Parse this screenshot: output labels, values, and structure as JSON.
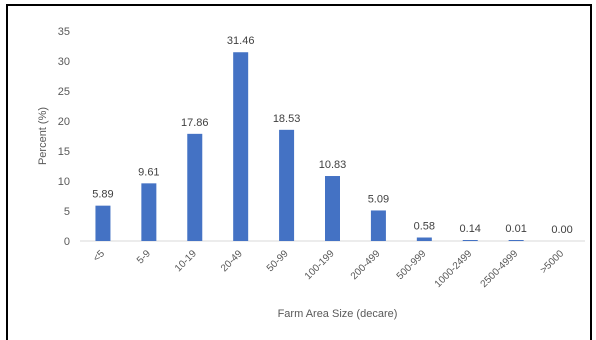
{
  "chart_data": {
    "type": "bar",
    "title": "",
    "xlabel": "Farm Area Size (decare)",
    "ylabel": "Percent (%)",
    "ylim": [
      0,
      35
    ],
    "yticks": [
      0,
      5,
      10,
      15,
      20,
      25,
      30,
      35
    ],
    "grid": false,
    "legend": "none",
    "categories": [
      "<5",
      "5-9",
      "10-19",
      "20-49",
      "50-99",
      "100-199",
      "200-499",
      "500-999",
      "1000-2499",
      "2500-4999",
      ">5000"
    ],
    "values": [
      5.89,
      9.61,
      17.86,
      31.46,
      18.53,
      10.83,
      5.09,
      0.58,
      0.14,
      0.01,
      0.0
    ],
    "data_labels": [
      "5.89",
      "9.61",
      "17.86",
      "31.46",
      "18.53",
      "10.83",
      "5.09",
      "0.58",
      "0.14",
      "0.01",
      "0.00"
    ],
    "bar_color": "#4472c4",
    "text_color": "#595959",
    "axis_color": "#d9d9d9"
  }
}
